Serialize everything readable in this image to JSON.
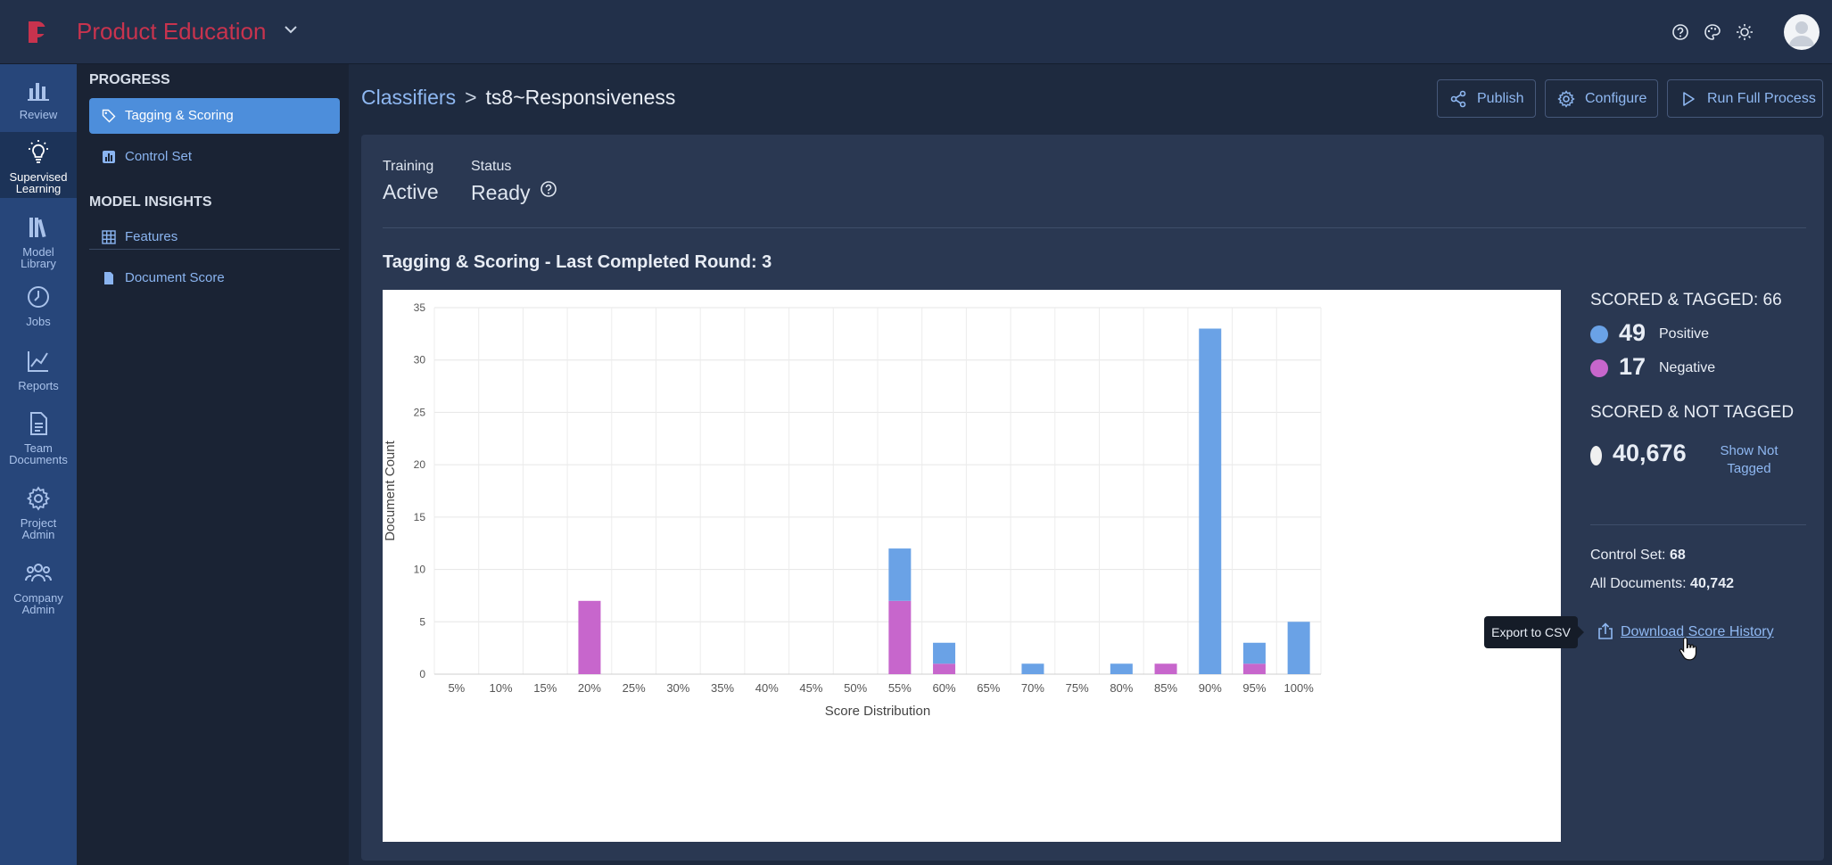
{
  "topbar": {
    "app_title": "Product Education",
    "icons": [
      "logo-icon",
      "help-icon",
      "palette-icon",
      "brightness-icon",
      "avatar"
    ]
  },
  "rail": {
    "items": [
      {
        "label": "Review",
        "icon": "bar-chart-icon"
      },
      {
        "label": "Supervised Learning",
        "icon": "lightbulb-icon"
      },
      {
        "label": "Model Library",
        "icon": "books-icon"
      },
      {
        "label": "Jobs",
        "icon": "clock-icon"
      },
      {
        "label": "Reports",
        "icon": "line-chart-icon"
      },
      {
        "label": "Team Documents",
        "icon": "document-icon"
      },
      {
        "label": "Project Admin",
        "icon": "gear-icon"
      },
      {
        "label": "Company Admin",
        "icon": "people-icon"
      }
    ]
  },
  "subnav": {
    "progress_heading": "PROGRESS",
    "progress_items": [
      {
        "label": "Tagging & Scoring",
        "icon": "tag-icon"
      },
      {
        "label": "Control Set",
        "icon": "chart-box-icon"
      }
    ],
    "insights_heading": "MODEL INSIGHTS",
    "insights_items": [
      {
        "label": "Features",
        "icon": "grid-icon"
      },
      {
        "label": "Document Score",
        "icon": "file-icon"
      }
    ]
  },
  "header": {
    "breadcrumb_root": "Classifiers",
    "breadcrumb_separator": ">",
    "breadcrumb_current": "ts8~Responsiveness",
    "publish_label": "Publish",
    "configure_label": "Configure",
    "run_label": "Run Full Process"
  },
  "meta": {
    "training_label": "Training",
    "training_value": "Active",
    "status_label": "Status",
    "status_value": "Ready"
  },
  "section_title": "Tagging & Scoring - Last Completed Round: 3",
  "stats": {
    "scored_tagged_heading": "SCORED & TAGGED: 66",
    "positive_count": "49",
    "positive_label": "Positive",
    "negative_count": "17",
    "negative_label": "Negative",
    "scored_not_tagged_heading": "SCORED & NOT TAGGED",
    "not_tagged_count": "40,676",
    "show_not_tagged_label": "Show Not Tagged",
    "control_set_label": "Control Set:",
    "control_set_value": "68",
    "all_documents_label": "All Documents:",
    "all_documents_value": "40,742",
    "download_label": "Download Score History",
    "tooltip": "Export to CSV"
  },
  "colors": {
    "positive": "#6aa2e6",
    "negative": "#c766cc",
    "not_tagged": "#f0f0f0",
    "accent_link": "#8fb8f2",
    "brand": "#c8334e"
  },
  "chart_data": {
    "type": "bar",
    "stacked": true,
    "title": "",
    "xlabel": "Score Distribution",
    "ylabel": "Document Count",
    "ylim": [
      0,
      35
    ],
    "yticks": [
      0,
      5,
      10,
      15,
      20,
      25,
      30,
      35
    ],
    "grid": true,
    "categories": [
      "5%",
      "10%",
      "15%",
      "20%",
      "25%",
      "30%",
      "35%",
      "40%",
      "45%",
      "50%",
      "55%",
      "60%",
      "65%",
      "70%",
      "75%",
      "80%",
      "85%",
      "90%",
      "95%",
      "100%"
    ],
    "series": [
      {
        "name": "Negative",
        "color": "#c766cc",
        "values": [
          0,
          0,
          0,
          7,
          0,
          0,
          0,
          0,
          0,
          0,
          7,
          1,
          0,
          0,
          0,
          0,
          1,
          0,
          1,
          0
        ]
      },
      {
        "name": "Positive",
        "color": "#6aa2e6",
        "values": [
          0,
          0,
          0,
          0,
          0,
          0,
          0,
          0,
          0,
          0,
          5,
          2,
          0,
          1,
          0,
          1,
          0,
          33,
          2,
          5
        ]
      }
    ]
  }
}
